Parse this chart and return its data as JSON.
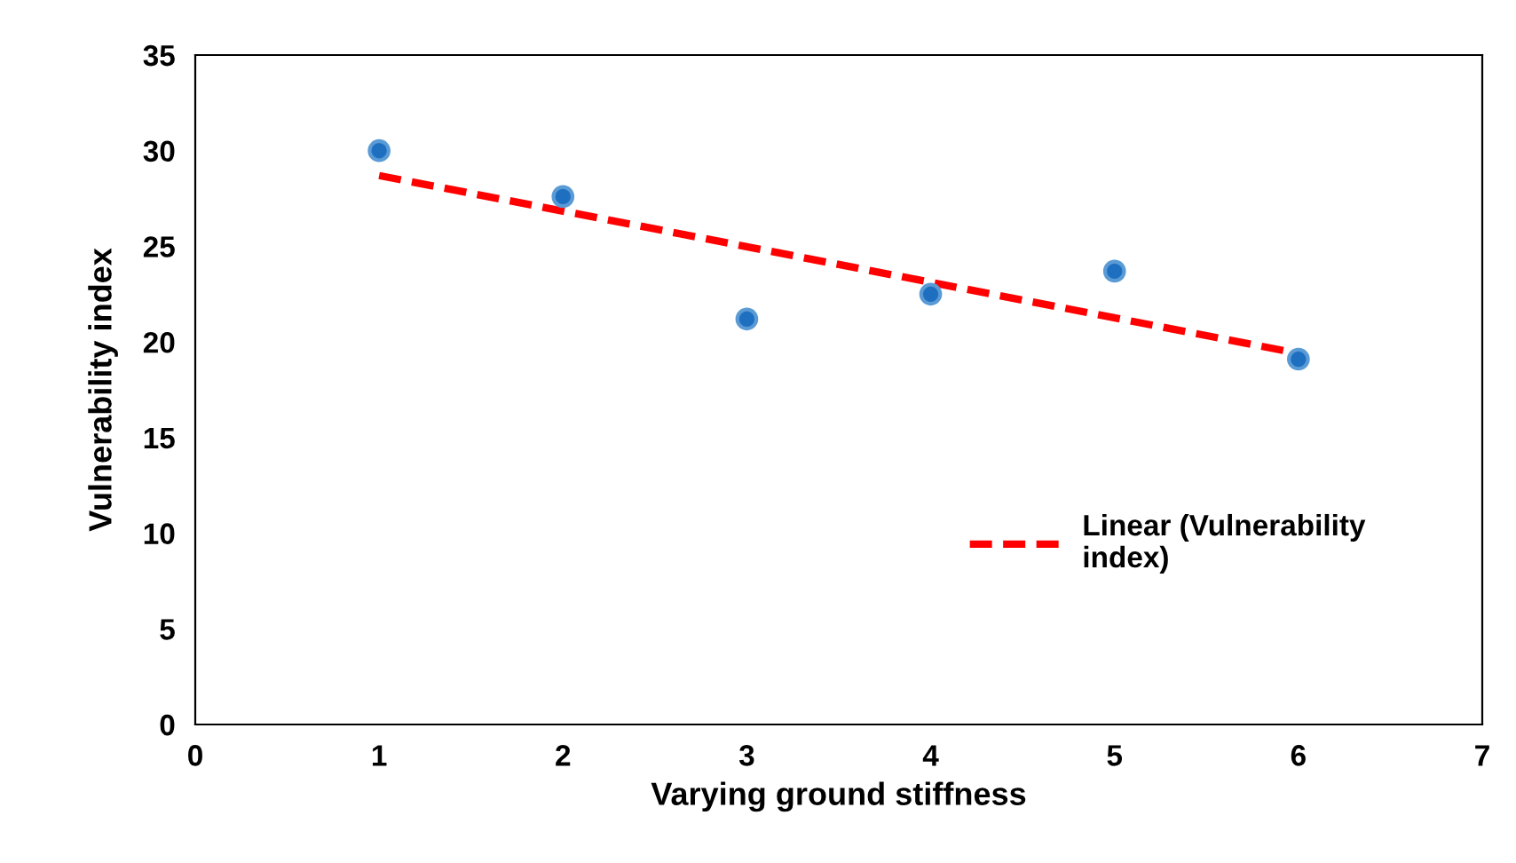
{
  "chart_data": {
    "type": "scatter",
    "xlabel": "Varying ground stiffness",
    "ylabel": "Vulnerability index",
    "xlim": [
      0,
      7
    ],
    "xticks": [
      0,
      1,
      2,
      3,
      4,
      5,
      6,
      7
    ],
    "ylim": [
      0,
      35
    ],
    "yticks": [
      0,
      5,
      10,
      15,
      20,
      25,
      30,
      35
    ],
    "grid": false,
    "legend": "right",
    "series": [
      {
        "marker": "circle",
        "color": "#1f6fc0",
        "x": [
          1,
          2,
          3,
          4,
          5,
          6
        ],
        "values": [
          30.0,
          27.6,
          21.2,
          22.5,
          23.7,
          19.1
        ]
      },
      {
        "type": "line",
        "name": "Linear (Vulnerability index)",
        "color": "#ff0000",
        "line_style": "dashed",
        "x": [
          1,
          6
        ],
        "values": [
          28.7,
          19.4
        ]
      }
    ]
  }
}
